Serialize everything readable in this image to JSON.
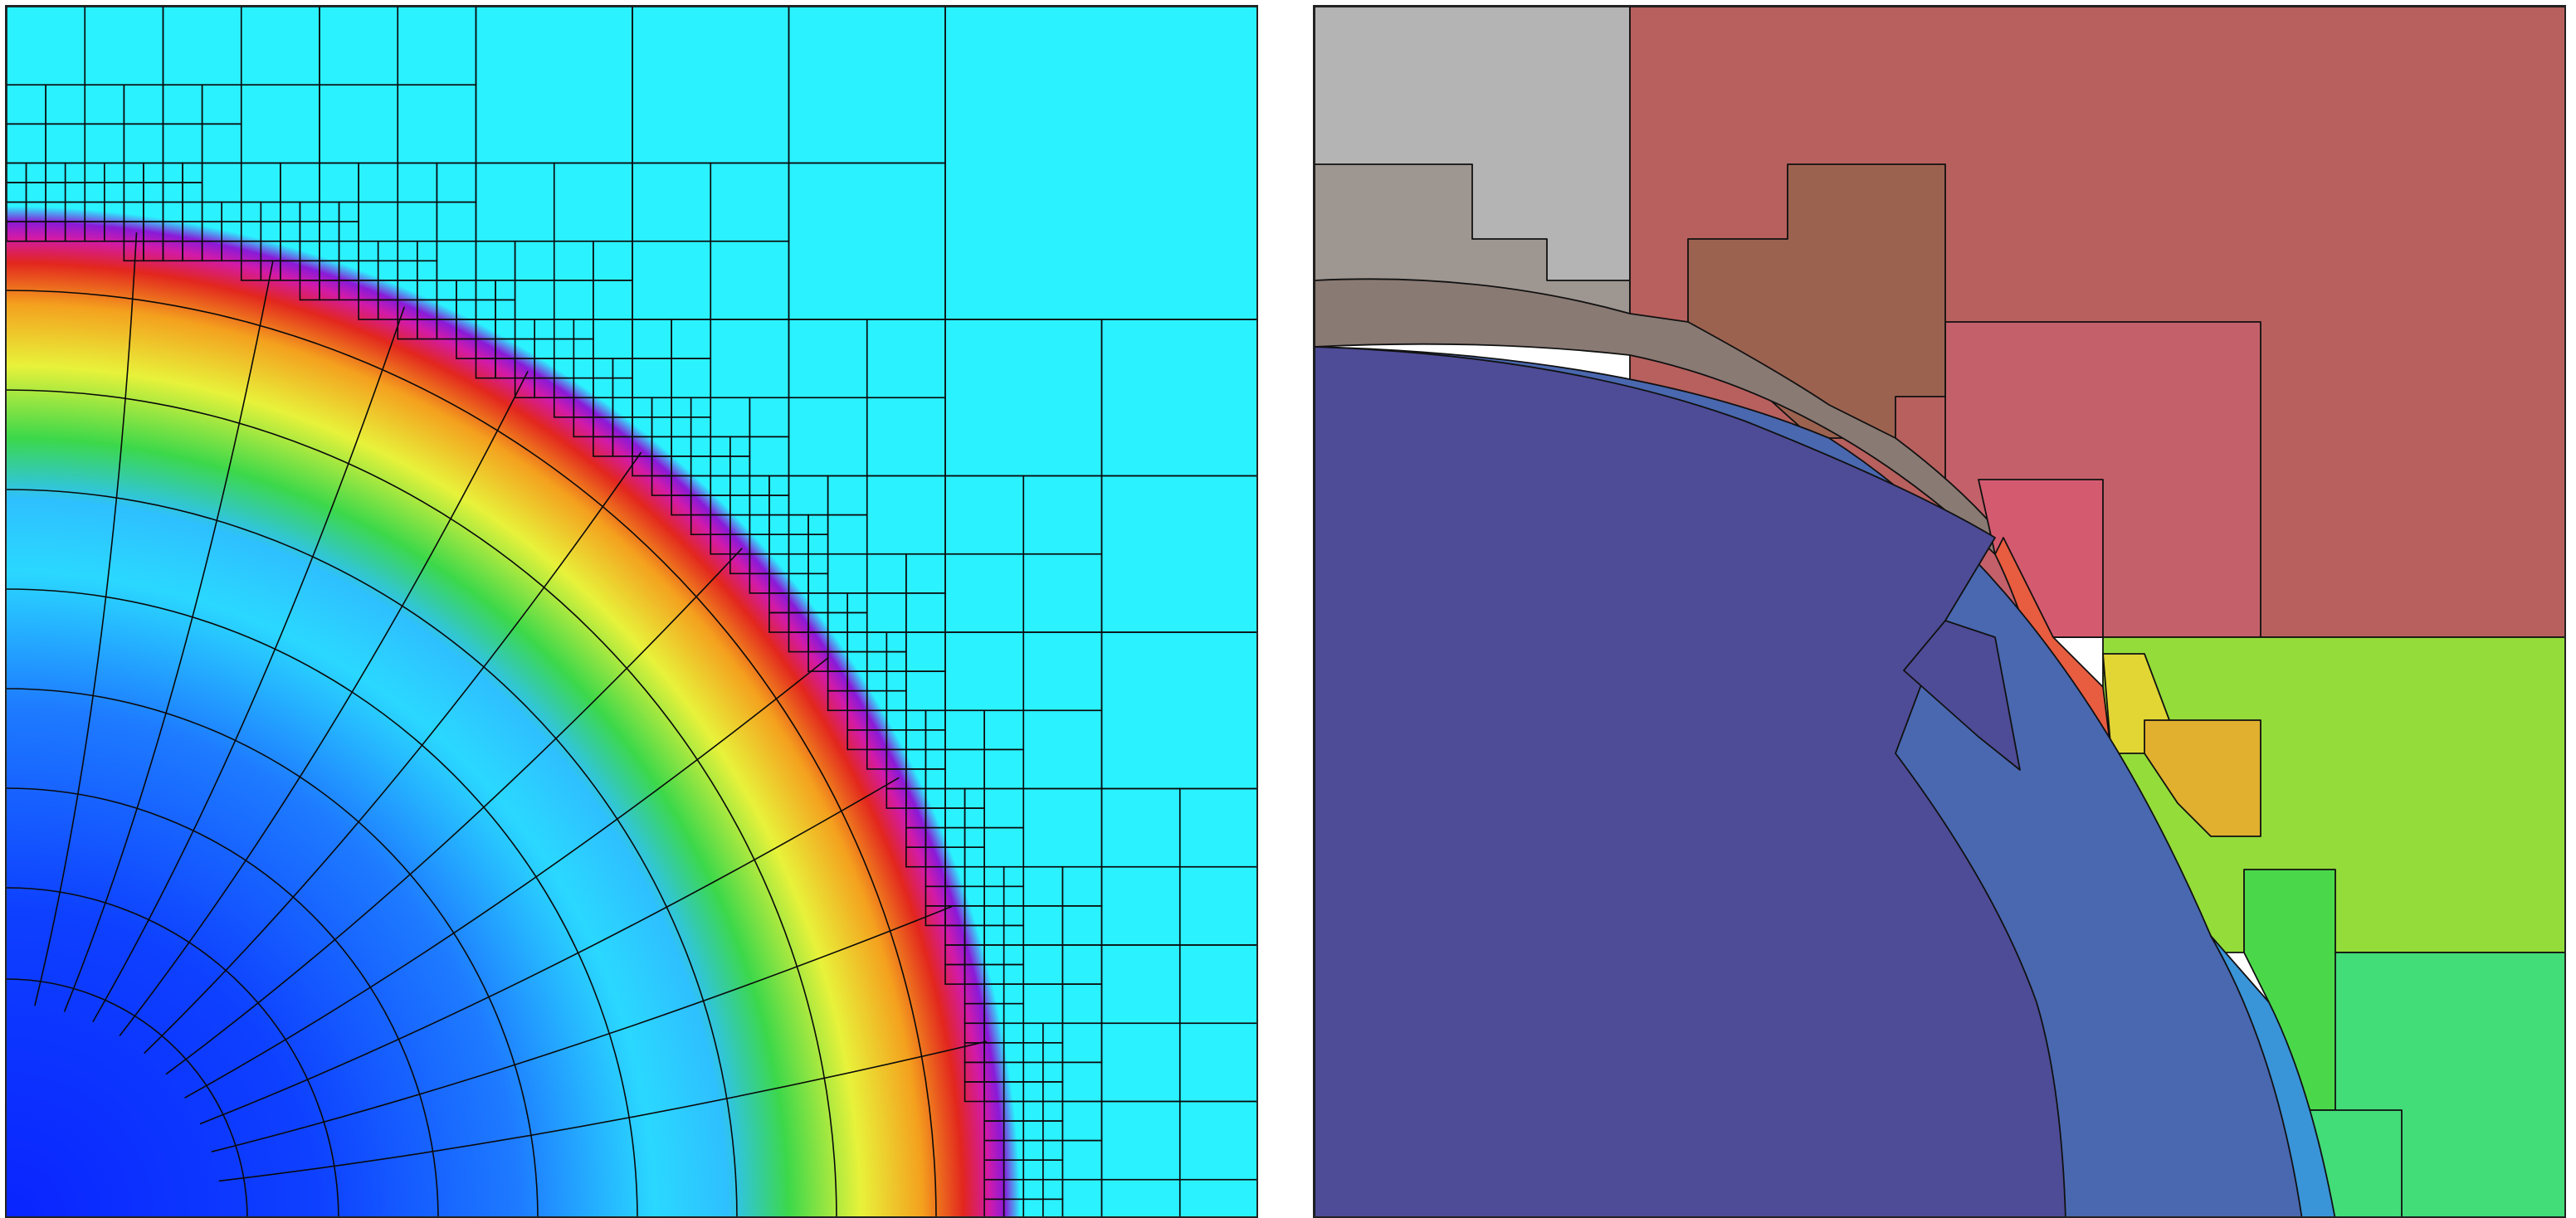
{
  "figure": {
    "panels": [
      {
        "id": "left",
        "description_name": "adaptive-mesh-field-plot",
        "colors": {
          "background": "#2af2ff",
          "grid": "#0a0a0a",
          "colormap": [
            "#0a24ff",
            "#1a6cff",
            "#2ad0ff",
            "#2af2ff",
            "#3ed84a",
            "#e8f23a",
            "#f6a21e",
            "#e2261e",
            "#d21aa8",
            "#8a1ad8",
            "#2af2ff"
          ]
        }
      },
      {
        "id": "right",
        "description_name": "partition-region-plot",
        "colors": {
          "grey_light": "#b4b4b4",
          "grey_mid": "#9e9690",
          "grey_dark": "#8a7a74",
          "brown": "#9c6250",
          "red_top": "#b8605e",
          "red_mid": "#c4606a",
          "pink": "#d45a70",
          "orange_red": "#e85c40",
          "orange": "#e0b02e",
          "yellow": "#e2d634",
          "lime": "#94dc3a",
          "green": "#4ad84a",
          "teal": "#42dc78",
          "purple": "#4e4c96",
          "blue": "#4a68b0",
          "cyan_blue": "#3a94d8"
        }
      }
    ]
  }
}
